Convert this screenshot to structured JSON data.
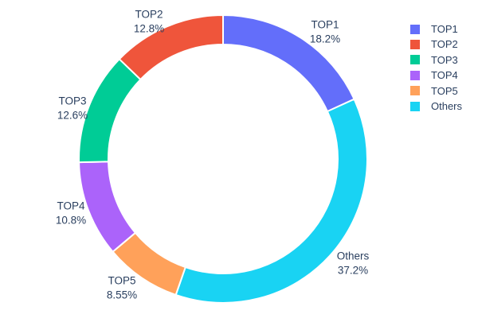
{
  "chart_data": {
    "type": "pie",
    "subtype": "donut",
    "title": "",
    "hole": 0.8,
    "labels": [
      "TOP1",
      "TOP2",
      "TOP3",
      "TOP4",
      "TOP5",
      "Others"
    ],
    "values": [
      18.2,
      12.8,
      12.6,
      10.8,
      8.55,
      37.2
    ],
    "percent_labels": [
      "18.2%",
      "12.8%",
      "12.6%",
      "10.8%",
      "8.55%",
      "37.2%"
    ],
    "colors": [
      "#636EFA",
      "#EF553B",
      "#00CC96",
      "#AB63FA",
      "#FFA15A",
      "#19D3F3"
    ],
    "clockwise_order_from_top": [
      "TOP1",
      "Others",
      "TOP5",
      "TOP4",
      "TOP3",
      "TOP2"
    ],
    "background_color": "#ffffff",
    "text_color": "#2a3f5f",
    "slice_border_color": "#ffffff",
    "legend": {
      "position": "right",
      "entries": [
        "TOP1",
        "TOP2",
        "TOP3",
        "TOP4",
        "TOP5",
        "Others"
      ]
    }
  }
}
